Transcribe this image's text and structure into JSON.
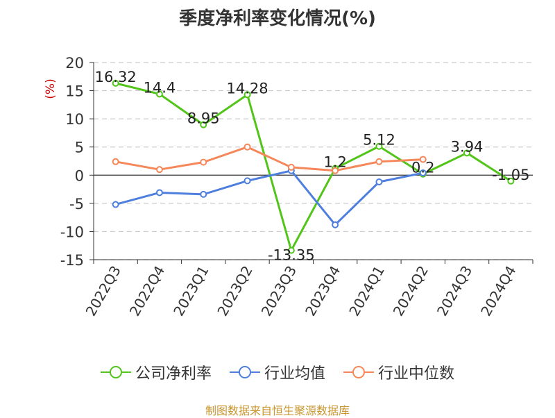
{
  "chart_data": {
    "type": "line",
    "title": "季度净利率变化情况(%)",
    "ylabel": "(%)",
    "ylim": [
      -15,
      20
    ],
    "yticks": [
      -15,
      -10,
      -5,
      0,
      5,
      10,
      15,
      20
    ],
    "categories": [
      "2022Q3",
      "2022Q4",
      "2023Q1",
      "2023Q2",
      "2023Q3",
      "2023Q4",
      "2024Q1",
      "2024Q2",
      "2024Q3",
      "2024Q4"
    ],
    "grid": true,
    "legend_position": "bottom",
    "series": [
      {
        "name": "公司净利率",
        "color": "#52c41a",
        "show_labels": true,
        "values": [
          16.32,
          14.4,
          8.95,
          14.28,
          -13.35,
          1.2,
          5.12,
          0.2,
          3.94,
          -1.05
        ],
        "labels": [
          "16.32",
          "14.4",
          "8.95",
          "14.28",
          "-13.35",
          "1.2",
          "5.12",
          "0.2",
          "3.94",
          "-1.05"
        ]
      },
      {
        "name": "行业均值",
        "color": "#4e7fde",
        "show_labels": false,
        "values": [
          -5.2,
          -3.1,
          -3.4,
          -1.0,
          0.8,
          -8.8,
          -1.2,
          0.4,
          null,
          null
        ]
      },
      {
        "name": "行业中位数",
        "color": "#f5875a",
        "show_labels": false,
        "values": [
          2.4,
          1.0,
          2.3,
          5.0,
          1.4,
          0.8,
          2.4,
          2.8,
          null,
          null
        ]
      }
    ]
  },
  "source": "制图数据来自恒生聚源数据库"
}
